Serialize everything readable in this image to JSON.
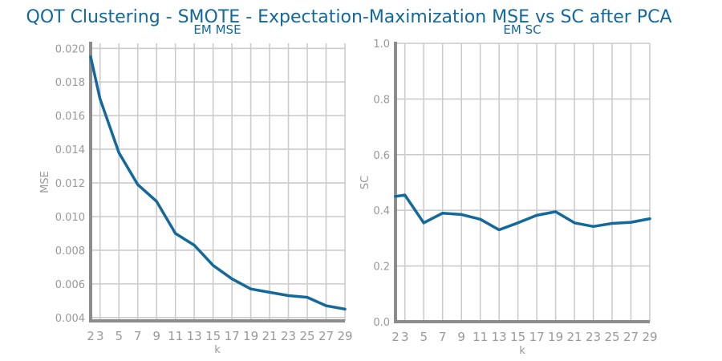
{
  "figure": {
    "title": "QOT Clustering - SMOTE - Expectation-Maximization MSE vs SC after PCA"
  },
  "colors": {
    "series": "#13699b",
    "title": "#13699b",
    "tick": "#999999",
    "grid": "#cccccc",
    "spine": "#8c8c8c"
  },
  "chart_data": [
    {
      "type": "line",
      "title": "EM MSE",
      "xlabel": "k",
      "ylabel": "MSE",
      "grid": true,
      "xlim": [
        2,
        29
      ],
      "ylim": [
        0.0038,
        0.0203
      ],
      "xticks": [
        2,
        3,
        5,
        7,
        9,
        11,
        13,
        15,
        17,
        19,
        21,
        23,
        25,
        27,
        29
      ],
      "yticks": [
        0.004,
        0.006,
        0.008,
        0.01,
        0.012,
        0.014,
        0.016,
        0.018,
        0.02
      ],
      "ytick_labels": [
        "0.004",
        "0.006",
        "0.008",
        "0.010",
        "0.012",
        "0.014",
        "0.016",
        "0.018",
        "0.020"
      ],
      "series": [
        {
          "x": [
            2,
            3,
            5,
            7,
            9,
            11,
            13,
            15,
            17,
            19,
            21,
            23,
            25,
            27,
            29
          ],
          "values": [
            0.0195,
            0.017,
            0.0138,
            0.0119,
            0.0109,
            0.009,
            0.0083,
            0.0071,
            0.0063,
            0.0057,
            0.0055,
            0.0053,
            0.0052,
            0.0047,
            0.0045
          ]
        }
      ]
    },
    {
      "type": "line",
      "title": "EM SC",
      "xlabel": "k",
      "ylabel": "SC",
      "grid": true,
      "xlim": [
        2,
        29
      ],
      "ylim": [
        0.0,
        1.0
      ],
      "xticks": [
        2,
        3,
        5,
        7,
        9,
        11,
        13,
        15,
        17,
        19,
        21,
        23,
        25,
        27,
        29
      ],
      "yticks": [
        0.0,
        0.2,
        0.4,
        0.6,
        0.8,
        1.0
      ],
      "ytick_labels": [
        "0.0",
        "0.2",
        "0.4",
        "0.6",
        "0.8",
        "1.0"
      ],
      "series": [
        {
          "x": [
            2,
            3,
            5,
            7,
            9,
            11,
            13,
            15,
            17,
            19,
            21,
            23,
            25,
            27,
            29
          ],
          "values": [
            0.45,
            0.455,
            0.355,
            0.39,
            0.385,
            0.368,
            0.33,
            0.355,
            0.382,
            0.395,
            0.355,
            0.342,
            0.353,
            0.357,
            0.37
          ]
        }
      ]
    }
  ]
}
